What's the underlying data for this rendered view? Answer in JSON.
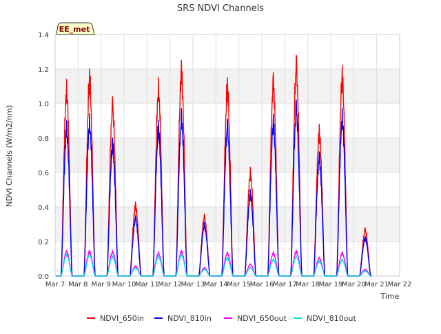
{
  "chart_data": {
    "type": "line",
    "title": "SRS NDVI Channels",
    "xlabel": "Time",
    "ylabel": "NDVI Channels (W/m2/nm)",
    "badge": "EE_met",
    "ylim": [
      0,
      1.4
    ],
    "xlim": [
      7,
      22
    ],
    "y_ticks": [
      0.0,
      0.2,
      0.4,
      0.6,
      0.8,
      1.0,
      1.2,
      1.4
    ],
    "y_tick_labels": [
      "0.0",
      "0.2",
      "0.4",
      "0.6",
      "0.8",
      "1.0",
      "1.2",
      "1.4"
    ],
    "x_ticks": [
      7,
      8,
      9,
      10,
      11,
      12,
      13,
      14,
      15,
      16,
      17,
      18,
      19,
      20,
      21,
      22
    ],
    "x_tick_labels": [
      "Mar 7",
      "Mar 8",
      "Mar 9",
      "Mar 10",
      "Mar 11",
      "Mar 12",
      "Mar 13",
      "Mar 14",
      "Mar 15",
      "Mar 16",
      "Mar 17",
      "Mar 18",
      "Mar 19",
      "Mar 20",
      "Mar 21",
      "Mar 22"
    ],
    "grid": true,
    "legend_position": "bottom",
    "days": [
      7.5,
      8.5,
      9.5,
      10.5,
      11.5,
      12.5,
      13.5,
      14.5,
      15.5,
      16.5,
      17.5,
      18.5,
      19.5,
      20.5
    ],
    "series": [
      {
        "name": "NDVI_650in",
        "color": "#ff0000",
        "daily_peaks": [
          1.14,
          1.2,
          1.04,
          0.43,
          1.15,
          1.25,
          0.36,
          1.15,
          0.63,
          1.18,
          1.28,
          0.88,
          1.22,
          0.28
        ]
      },
      {
        "name": "NDVI_810in",
        "color": "#0000ff",
        "daily_peaks": [
          0.9,
          0.94,
          0.8,
          0.35,
          0.9,
          0.97,
          0.31,
          0.91,
          0.5,
          0.94,
          1.02,
          0.72,
          0.97,
          0.23
        ]
      },
      {
        "name": "NDVI_650out",
        "color": "#ff00ff",
        "daily_peaks": [
          0.15,
          0.15,
          0.15,
          0.06,
          0.14,
          0.15,
          0.05,
          0.14,
          0.07,
          0.14,
          0.15,
          0.11,
          0.14,
          0.04
        ]
      },
      {
        "name": "NDVI_810out",
        "color": "#00e5e5",
        "daily_peaks": [
          0.13,
          0.13,
          0.12,
          0.05,
          0.12,
          0.13,
          0.04,
          0.11,
          0.05,
          0.1,
          0.12,
          0.09,
          0.1,
          0.03
        ]
      }
    ]
  }
}
